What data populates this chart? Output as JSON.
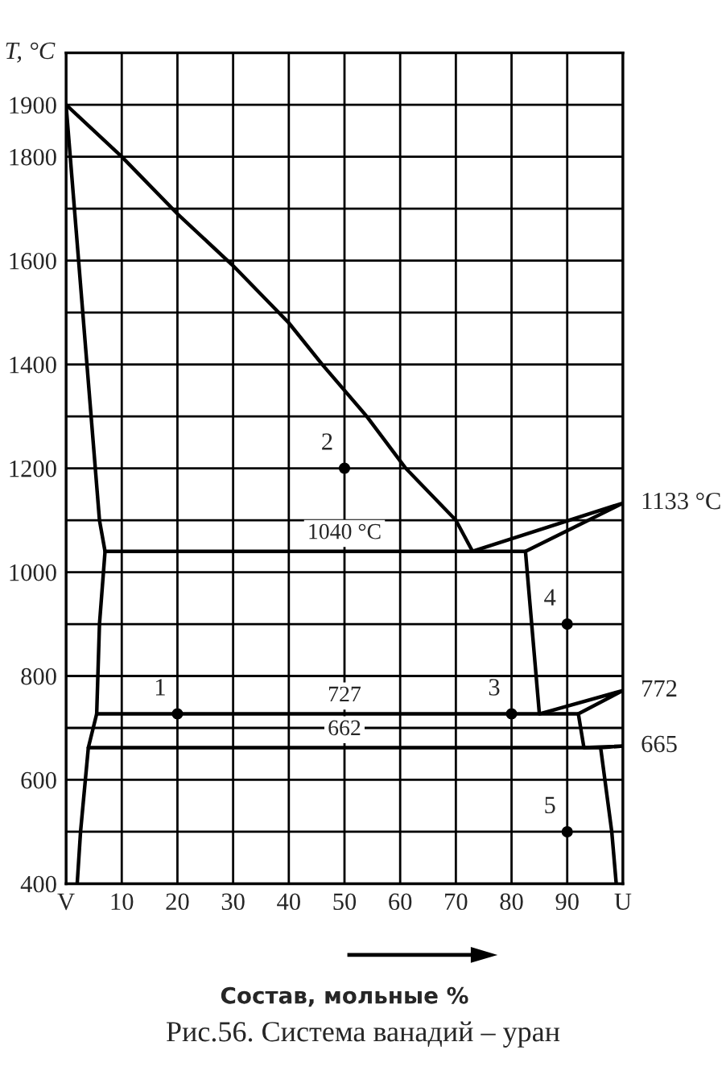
{
  "chart_data": {
    "type": "line",
    "title": "Рис.56. Система ванадий – уран",
    "xlabel": "Состав, мольные %",
    "ylabel": "T, °C",
    "xlim": [
      0,
      100
    ],
    "ylim": [
      400,
      2000
    ],
    "xticks": [
      {
        "value": 0,
        "label": "V"
      },
      10,
      20,
      30,
      40,
      50,
      60,
      70,
      80,
      90,
      {
        "value": 100,
        "label": "U"
      }
    ],
    "yticks": [
      400,
      {
        "value": 500,
        "label": null
      },
      600,
      {
        "value": 700,
        "label": null
      },
      800,
      {
        "value": 900,
        "label": null
      },
      1000,
      {
        "value": 1100,
        "label": null
      },
      1200,
      {
        "value": 1300,
        "label": null
      },
      1400,
      {
        "value": 1500,
        "label": null
      },
      1600,
      {
        "value": 1700,
        "label": null
      },
      1800,
      1900
    ],
    "grid": true,
    "series": [
      {
        "color": "#000000",
        "x": [
          0,
          10,
          20,
          30,
          40,
          46,
          54,
          61,
          70,
          73
        ],
        "values": [
          1900,
          1800,
          1690,
          1590,
          1480,
          1400,
          1300,
          1200,
          1100,
          1040
        ]
      },
      {
        "color": "#000000",
        "x": [
          0,
          6,
          7,
          6,
          5.5,
          4,
          2.6,
          2
        ],
        "values": [
          1900,
          1100,
          1040,
          900,
          727,
          662,
          500,
          400
        ]
      },
      {
        "color": "#000000",
        "x": [
          7,
          82.5
        ],
        "values": [
          1040,
          1040
        ]
      },
      {
        "color": "#000000",
        "x": [
          73,
          100,
          82.5,
          85,
          100,
          92,
          93,
          100,
          96,
          98,
          98.8
        ],
        "values": [
          1040,
          1133,
          1040,
          727,
          772,
          727,
          662,
          665,
          662,
          500,
          400
        ]
      },
      {
        "color": "#000000",
        "x": [
          5.5,
          92
        ],
        "values": [
          727,
          727
        ]
      },
      {
        "color": "#000000",
        "x": [
          4,
          96
        ],
        "values": [
          662,
          662
        ]
      },
      {
        "type": "scatter",
        "color": "#000000",
        "marker": "circle",
        "x": [
          20,
          50,
          80,
          90,
          90
        ],
        "values": [
          727,
          1200,
          727,
          900,
          500
        ]
      }
    ],
    "annotations": [
      {
        "text": "1",
        "x": 20,
        "y": 727
      },
      {
        "text": "2",
        "x": 50,
        "y": 1200
      },
      {
        "text": "3",
        "x": 80,
        "y": 727
      },
      {
        "text": "4",
        "x": 90,
        "y": 900
      },
      {
        "text": "5",
        "x": 90,
        "y": 500
      },
      {
        "text": "1040 °C",
        "x": 50,
        "y": 1040
      },
      {
        "text": "727",
        "x": 50,
        "y": 727
      },
      {
        "text": "662",
        "x": 50,
        "y": 662
      },
      {
        "text": "1133 °C",
        "x": 100,
        "y": 1133
      },
      {
        "text": "772",
        "x": 100,
        "y": 772
      },
      {
        "text": "665",
        "x": 100,
        "y": 665
      }
    ]
  }
}
